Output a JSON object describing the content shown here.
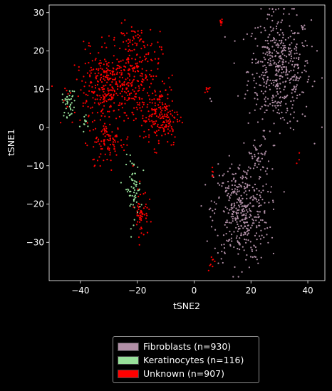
{
  "chart_data": {
    "type": "scatter",
    "title": "",
    "xlabel": "tSNE2",
    "ylabel": "tSNE1",
    "xlim": [
      -51,
      46
    ],
    "ylim": [
      -40,
      32
    ],
    "xticks": [
      "−40",
      "−20",
      "0",
      "20",
      "40"
    ],
    "yticks": [
      "−30",
      "−20",
      "−10",
      "0",
      "10",
      "20",
      "30"
    ],
    "series": [
      {
        "name": "Fibroblasts (n=930)",
        "color": "#b08fa6",
        "clusters": [
          {
            "cx": 30,
            "cy": 15,
            "sx": 5.5,
            "sy": 7.5,
            "n": 480
          },
          {
            "cx": 16.5,
            "cy": -22,
            "sx": 4.8,
            "sy": 6.5,
            "n": 400
          },
          {
            "cx": 23,
            "cy": -8,
            "sx": 2.0,
            "sy": 3.0,
            "n": 40
          },
          {
            "cx": 6,
            "cy": 7,
            "sx": 0.3,
            "sy": 0.5,
            "n": 2
          },
          {
            "cx": 21,
            "cy": -25,
            "sx": 3.0,
            "sy": 4.0,
            "n": 8
          }
        ]
      },
      {
        "name": "Keratinocytes (n=116)",
        "color": "#98e09a",
        "clusters": [
          {
            "cx": -44,
            "cy": 6.5,
            "sx": 1.2,
            "sy": 1.8,
            "n": 40
          },
          {
            "cx": -21.5,
            "cy": -16,
            "sx": 1.4,
            "sy": 4.0,
            "n": 65
          },
          {
            "cx": -38,
            "cy": 1,
            "sx": 1.0,
            "sy": 1.5,
            "n": 11
          }
        ]
      },
      {
        "name": "Unknown (n=907)",
        "color": "#ff0000",
        "clusters": [
          {
            "cx": -30,
            "cy": 10,
            "sx": 6.0,
            "sy": 5.0,
            "n": 330
          },
          {
            "cx": -22,
            "cy": 15,
            "sx": 5.0,
            "sy": 5.0,
            "n": 190
          },
          {
            "cx": -12,
            "cy": 3,
            "sx": 3.5,
            "sy": 4.0,
            "n": 190
          },
          {
            "cx": -30,
            "cy": -4,
            "sx": 3.0,
            "sy": 2.8,
            "n": 90
          },
          {
            "cx": -18.5,
            "cy": -22,
            "sx": 1.2,
            "sy": 3.2,
            "n": 55
          },
          {
            "cx": -22,
            "cy": 24,
            "sx": 2.5,
            "sy": 1.5,
            "n": 20
          },
          {
            "cx": 9.5,
            "cy": 27.5,
            "sx": 0.5,
            "sy": 0.5,
            "n": 8
          },
          {
            "cx": 4.5,
            "cy": 10,
            "sx": 0.8,
            "sy": 0.8,
            "n": 8
          },
          {
            "cx": 6.5,
            "cy": -11.5,
            "sx": 0.4,
            "sy": 0.8,
            "n": 5
          },
          {
            "cx": 6,
            "cy": -35,
            "sx": 0.6,
            "sy": 1.0,
            "n": 8
          },
          {
            "cx": 36.5,
            "cy": -8.5,
            "sx": 0.4,
            "sy": 1.2,
            "n": 3
          }
        ]
      }
    ]
  },
  "legend": {
    "items": [
      {
        "label": "Fibroblasts (n=930)",
        "color": "#b08fa6"
      },
      {
        "label": "Keratinocytes (n=116)",
        "color": "#98e09a"
      },
      {
        "label": "Unknown (n=907)",
        "color": "#ff0000"
      }
    ]
  }
}
